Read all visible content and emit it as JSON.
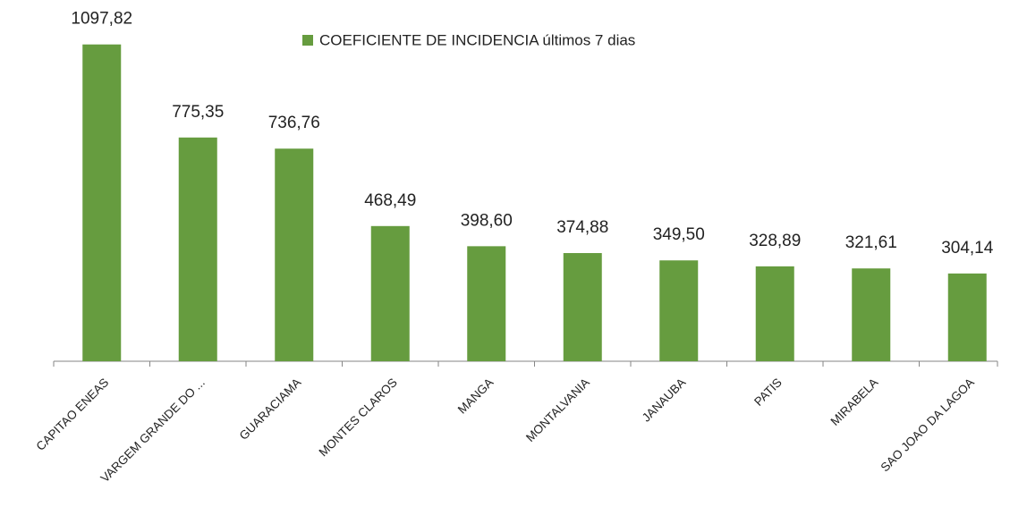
{
  "chart_data": {
    "type": "bar",
    "legend": "COEFICIENTE DE INCIDENCIA últimos 7 dias",
    "categories": [
      "CAPITAO ENEAS",
      "VARGEM GRANDE DO ...",
      "GUARACIAMA",
      "MONTES CLAROS",
      "MANGA",
      "MONTALVANIA",
      "JANAUBA",
      "PATIS",
      "MIRABELA",
      "SAO JOAO DA LAGOA"
    ],
    "values": [
      1097.82,
      775.35,
      736.76,
      468.49,
      398.6,
      374.88,
      349.5,
      328.89,
      321.61,
      304.14
    ],
    "value_labels": [
      "1097,82",
      "775,35",
      "736,76",
      "468,49",
      "398,60",
      "374,88",
      "349,50",
      "328,89",
      "321,61",
      "304,14"
    ],
    "color": "#669c3f",
    "ylim": [
      0,
      1100
    ]
  }
}
